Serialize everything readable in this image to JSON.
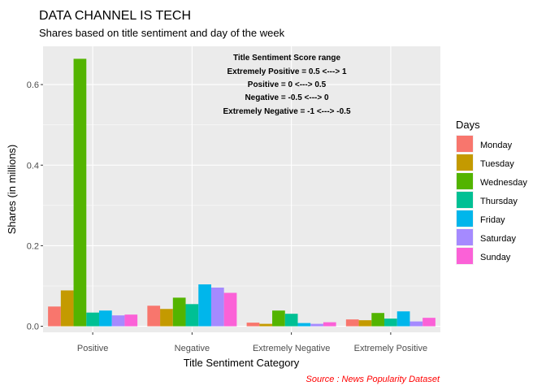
{
  "chart_data": {
    "type": "bar",
    "title": "DATA CHANNEL IS TECH",
    "subtitle": "Shares based on title sentiment and day of the week",
    "xlabel": "Title Sentiment Category",
    "ylabel": "Shares (in millions)",
    "categories": [
      "Positive",
      "Negative",
      "Extremely Negative",
      "Extremely Positive"
    ],
    "ylim": [
      -0.015,
      0.695
    ],
    "yticks": [
      0.0,
      0.2,
      0.4,
      0.6
    ],
    "ytick_labels": [
      "0.0",
      "0.2",
      "0.4",
      "0.6"
    ],
    "grid": true,
    "legend": {
      "title": "Days",
      "position": "right"
    },
    "series": [
      {
        "name": "Monday",
        "color": "#F8766D",
        "values": [
          0.049,
          0.051,
          0.009,
          0.017
        ]
      },
      {
        "name": "Tuesday",
        "color": "#C49A00",
        "values": [
          0.089,
          0.043,
          0.006,
          0.015
        ]
      },
      {
        "name": "Wednesday",
        "color": "#53B400",
        "values": [
          0.664,
          0.071,
          0.039,
          0.033
        ]
      },
      {
        "name": "Thursday",
        "color": "#00C094",
        "values": [
          0.034,
          0.055,
          0.031,
          0.019
        ]
      },
      {
        "name": "Friday",
        "color": "#00B6EB",
        "values": [
          0.039,
          0.104,
          0.008,
          0.037
        ]
      },
      {
        "name": "Saturday",
        "color": "#A58AFF",
        "values": [
          0.027,
          0.096,
          0.006,
          0.012
        ]
      },
      {
        "name": "Sunday",
        "color": "#FB61D7",
        "values": [
          0.029,
          0.083,
          0.01,
          0.021
        ]
      }
    ],
    "annotations": [
      "Title Sentiment Score range",
      "Extremely Positive = 0.5 <---> 1",
      "Positive = 0 <---> 0.5",
      "Negative = -0.5 <---> 0",
      "Extremely Negative = -1 <---> -0.5"
    ],
    "caption": "Source : News Popularity Dataset"
  }
}
